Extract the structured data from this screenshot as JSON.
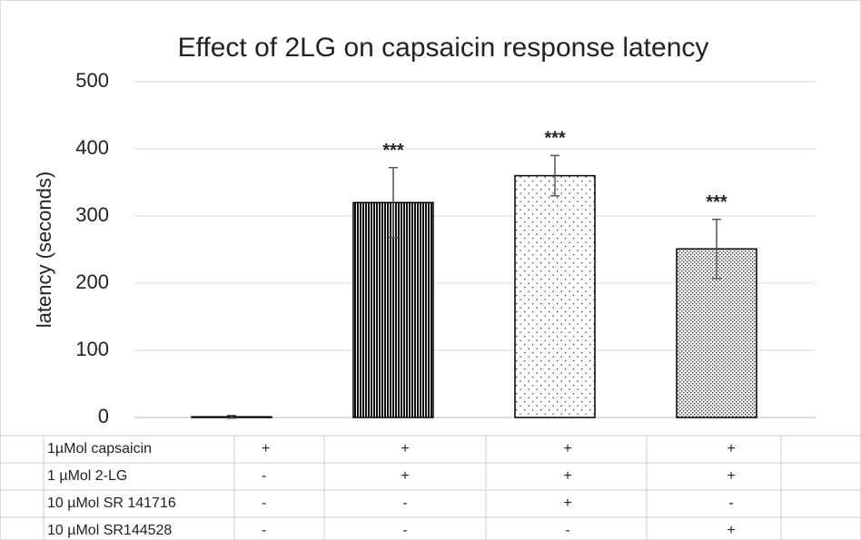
{
  "chart_data": {
    "type": "bar",
    "title": "Effect of 2LG on capsaicin response latency",
    "y_label": "latency (seconds)",
    "categories": [
      null,
      null,
      null,
      null
    ],
    "values": [
      1,
      320,
      360,
      251
    ],
    "errors": [
      2,
      52,
      30,
      44
    ],
    "annotations": [
      null,
      "***",
      "***",
      "***"
    ],
    "ylim": [
      0,
      500
    ],
    "yticks": [
      0,
      100,
      200,
      300,
      400,
      500
    ],
    "grid": true
  },
  "table": {
    "rows": [
      [
        "1µMol capsaicin",
        "+",
        "+",
        "+",
        "+"
      ],
      [
        "1 µMol 2-LG",
        "-",
        "+",
        "+",
        "+"
      ],
      [
        "10 µMol SR 141716",
        "-",
        "-",
        "+",
        "-"
      ],
      [
        "10 µMol SR144528",
        "-",
        "-",
        "-",
        "+"
      ]
    ]
  }
}
